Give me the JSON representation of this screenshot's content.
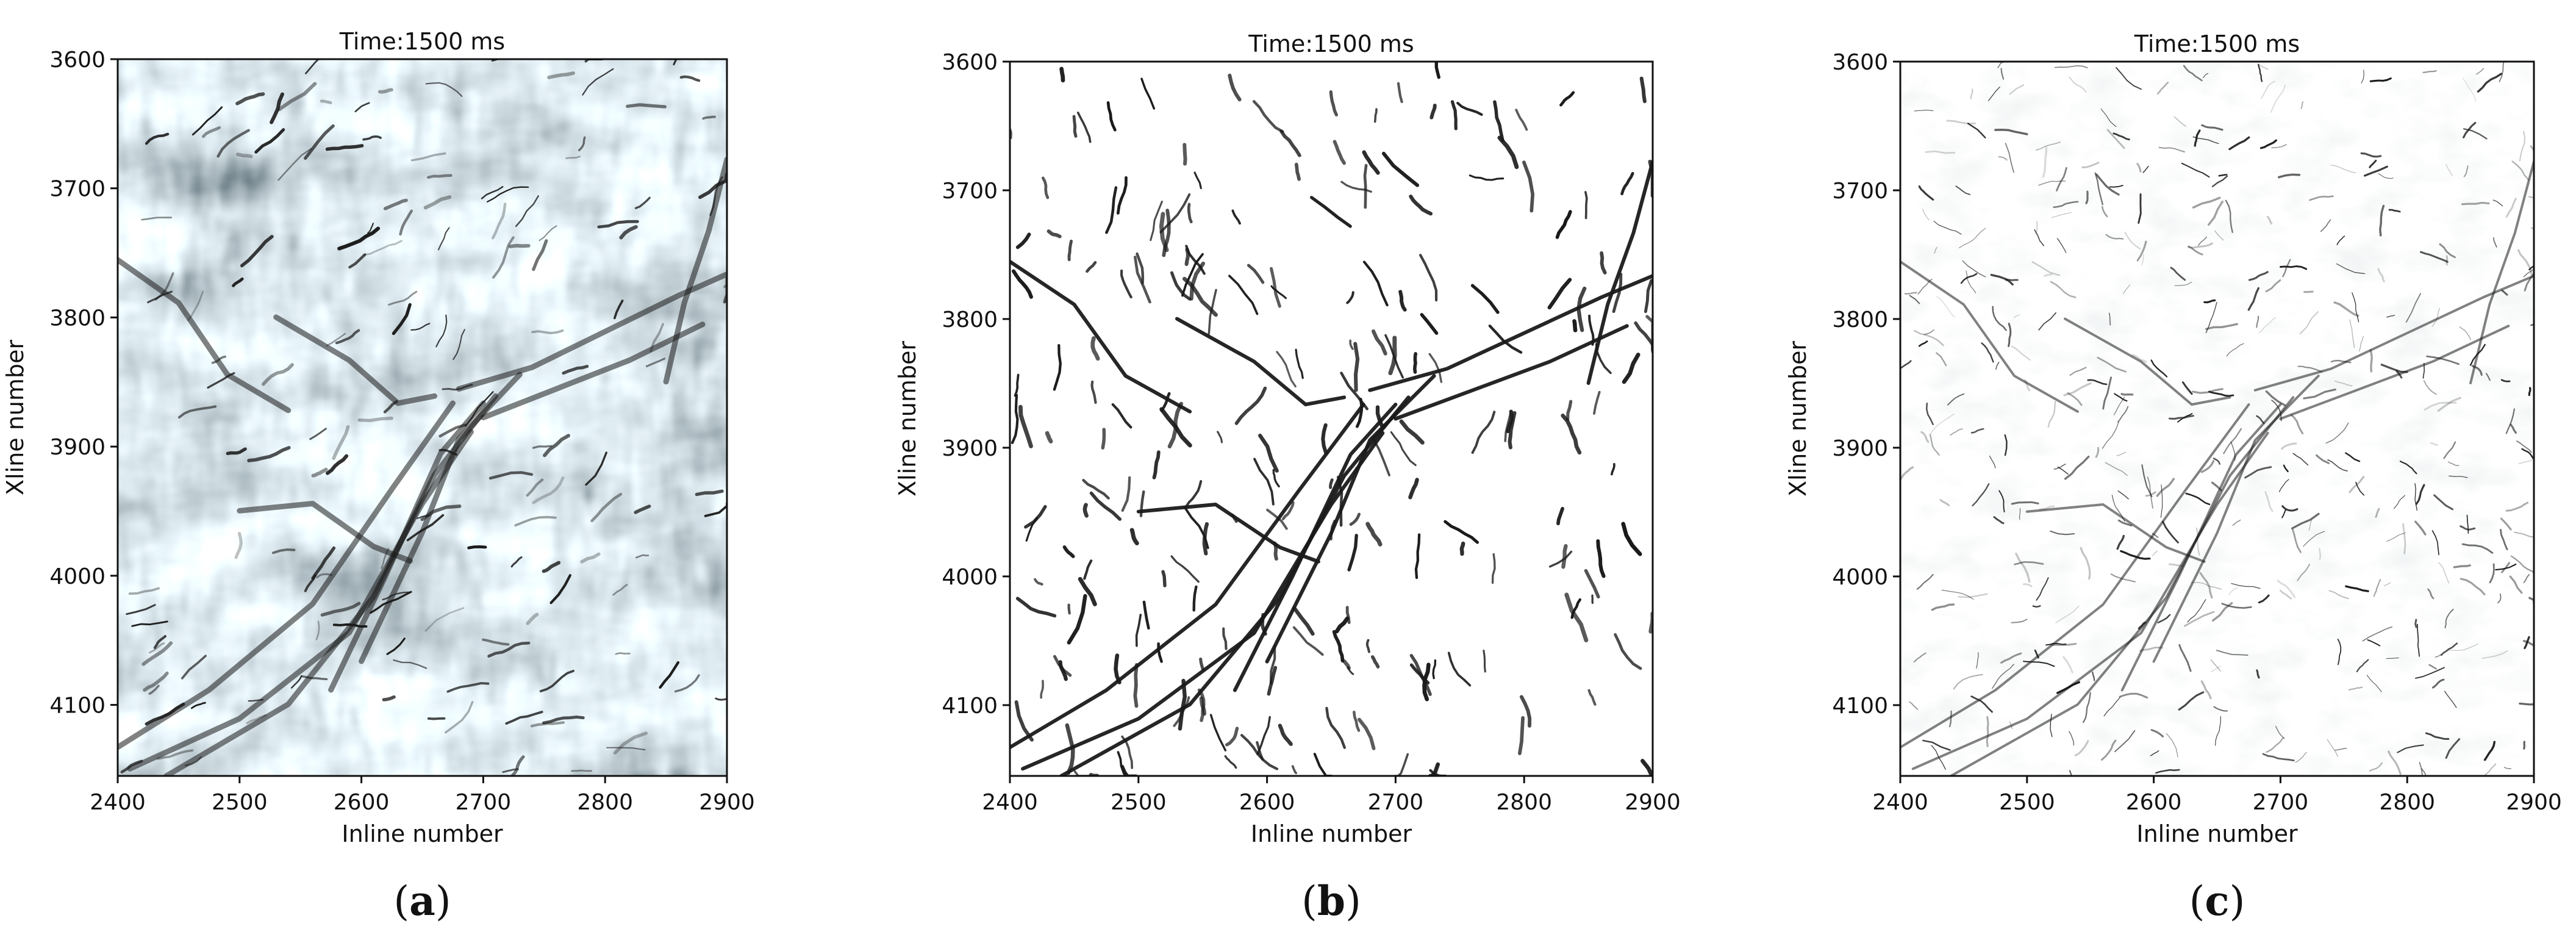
{
  "figure": {
    "captions": [
      "(a)",
      "(b)",
      "(c)"
    ],
    "caption_letters": [
      "a",
      "b",
      "c"
    ]
  },
  "chart_data": [
    {
      "type": "heatmap",
      "title": "Time:1500 ms",
      "xlabel": "Inline number",
      "ylabel": "Xline number",
      "xlim": [
        2400,
        2900
      ],
      "ylim": [
        4155,
        3600
      ],
      "xticks": [
        2400,
        2500,
        2600,
        2700,
        2800,
        2900
      ],
      "yticks": [
        3600,
        3700,
        3800,
        3900,
        4000,
        4100
      ],
      "colormap": "grayscale seismic amplitude",
      "grid": false
    },
    {
      "type": "heatmap",
      "title": "Time:1500 ms",
      "xlabel": "Inline number",
      "ylabel": "Xline number",
      "xlim": [
        2400,
        2900
      ],
      "ylim": [
        4155,
        3600
      ],
      "xticks": [
        2400,
        2500,
        2600,
        2700,
        2800,
        2900
      ],
      "yticks": [
        3600,
        3700,
        3800,
        3900,
        4000,
        4100
      ],
      "colormap": "binary fault lines (black on white)",
      "grid": false
    },
    {
      "type": "heatmap",
      "title": "Time:1500 ms",
      "xlabel": "Inline number",
      "ylabel": "Xline number",
      "xlim": [
        2400,
        2900
      ],
      "ylim": [
        4155,
        3600
      ],
      "xticks": [
        2400,
        2500,
        2600,
        2700,
        2800,
        2900
      ],
      "yticks": [
        3600,
        3700,
        3800,
        3900,
        4000,
        4100
      ],
      "colormap": "fault probability (light to dark gray)",
      "grid": false
    }
  ],
  "colors": {
    "axis": "#111111",
    "fault": "#1a1a1a",
    "paper": "#ffffff"
  }
}
